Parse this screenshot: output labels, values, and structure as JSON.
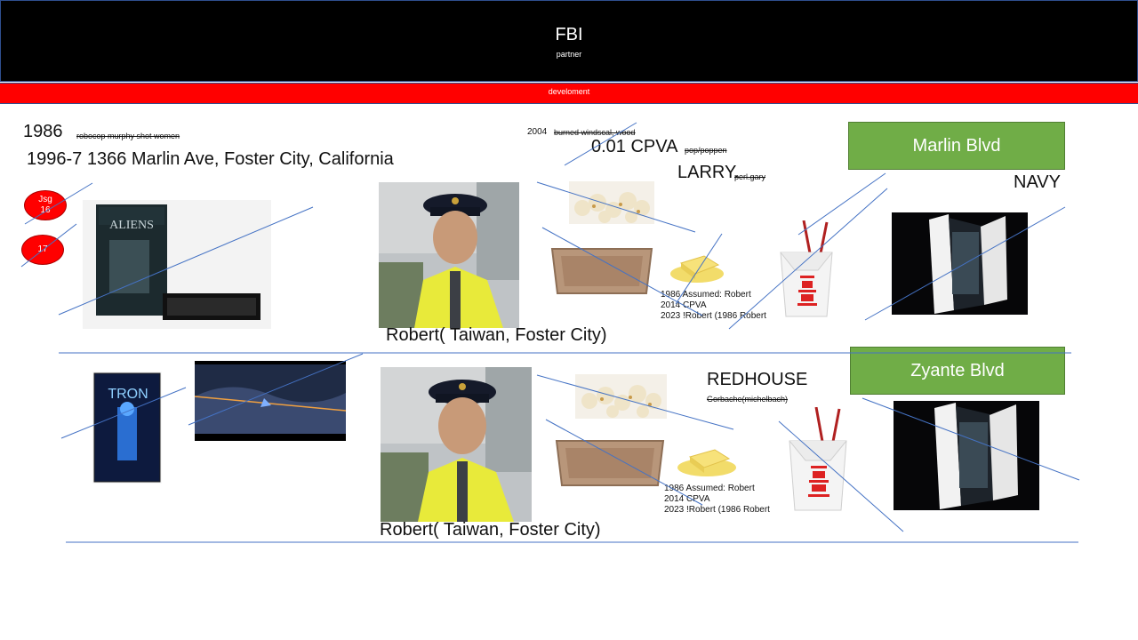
{
  "header": {
    "title": "FBI",
    "subtitle": "partner"
  },
  "banner": {
    "text": "develoment"
  },
  "row1": {
    "year_1986": "1986",
    "note_1986": "robocop murphy shot women",
    "address": "1996-7 1366 Marlin Ave, Foster City, California",
    "circle1_top": "Jsg",
    "circle1_bottom": "16",
    "circle2": "17",
    "year_2004": "2004",
    "note_2004": "burned windscal, wood",
    "cpva": "0.01 CPVA",
    "cpva_note": "pop/poppen",
    "larry": "LARRY.",
    "larry_note": "perl.gary",
    "blvd": "Marlin Blvd",
    "navy": "NAVY",
    "caption": "Robert( Taiwan, Foster City)",
    "notes": [
      "1986 Assumed: Robert",
      "2014 CPVA",
      "2023 !Robert (1986 Robert"
    ]
  },
  "row2": {
    "redhouse": "REDHOUSE",
    "redhouse_note": "Gorbache(michelbach)",
    "blvd": "Zyante Blvd",
    "caption": "Robert( Taiwan, Foster City)",
    "notes": [
      "1986 Assumed: Robert",
      "2014 CPVA",
      "2023 !Robert (1986 Robert"
    ]
  },
  "colors": {
    "header_bg": "#000000",
    "banner_bg": "#ff0000",
    "box_green": "#70ad47",
    "line_blue": "#4472c4"
  },
  "icons": [
    "aliens-vhs-image",
    "tron-vhs-image",
    "officer-photo",
    "popcorn-image",
    "baking-pan-image",
    "butter-image",
    "takeout-box-image",
    "phone-case-image",
    "video-frame-image"
  ]
}
